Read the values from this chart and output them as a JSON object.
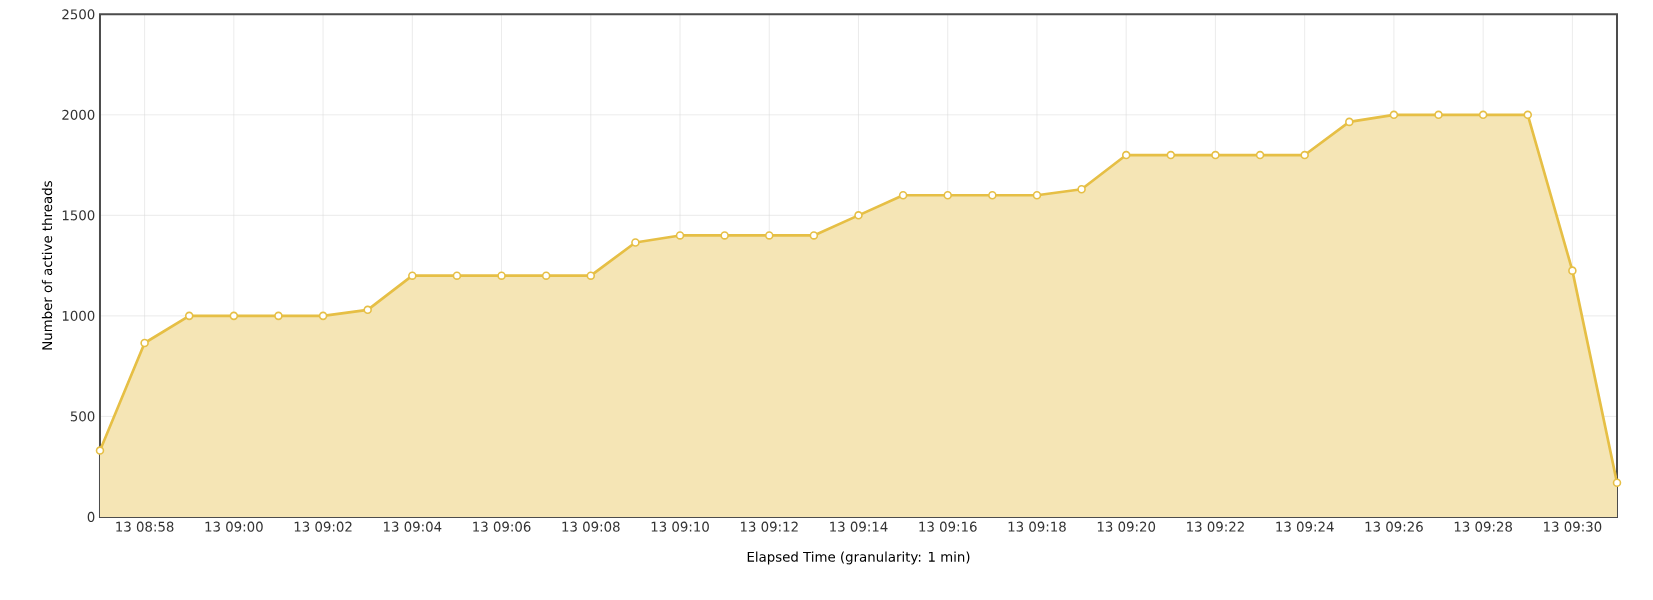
{
  "chart_data": {
    "type": "area",
    "xlabel": "Elapsed Time (granularity: 1 min)",
    "ylabel": "Number of active threads",
    "categories": [
      null,
      "13 08:58",
      null,
      "13 09:00",
      null,
      "13 09:02",
      null,
      "13 09:04",
      null,
      "13 09:06",
      null,
      "13 09:08",
      null,
      "13 09:10",
      null,
      "13 09:12",
      null,
      "13 09:14",
      null,
      "13 09:16",
      null,
      "13 09:18",
      null,
      "13 09:20",
      null,
      "13 09:22",
      null,
      "13 09:24",
      null,
      "13 09:26",
      null,
      "13 09:28",
      null,
      "13 09:30",
      null
    ],
    "series": [
      {
        "color": "#e6bf45",
        "values": [
          330,
          865,
          1000,
          1000,
          1000,
          1000,
          1030,
          1200,
          1200,
          1200,
          1200,
          1200,
          1365,
          1400,
          1400,
          1400,
          1400,
          1500,
          1600,
          1600,
          1600,
          1600,
          1630,
          1800,
          1800,
          1800,
          1800,
          1800,
          1965,
          2000,
          2000,
          2000,
          2000,
          1225,
          170
        ]
      }
    ],
    "ylim": [
      0,
      2500
    ],
    "yticks": [
      0,
      500,
      1000,
      1500,
      2000,
      2500
    ],
    "grid": true,
    "marker": "circle"
  }
}
